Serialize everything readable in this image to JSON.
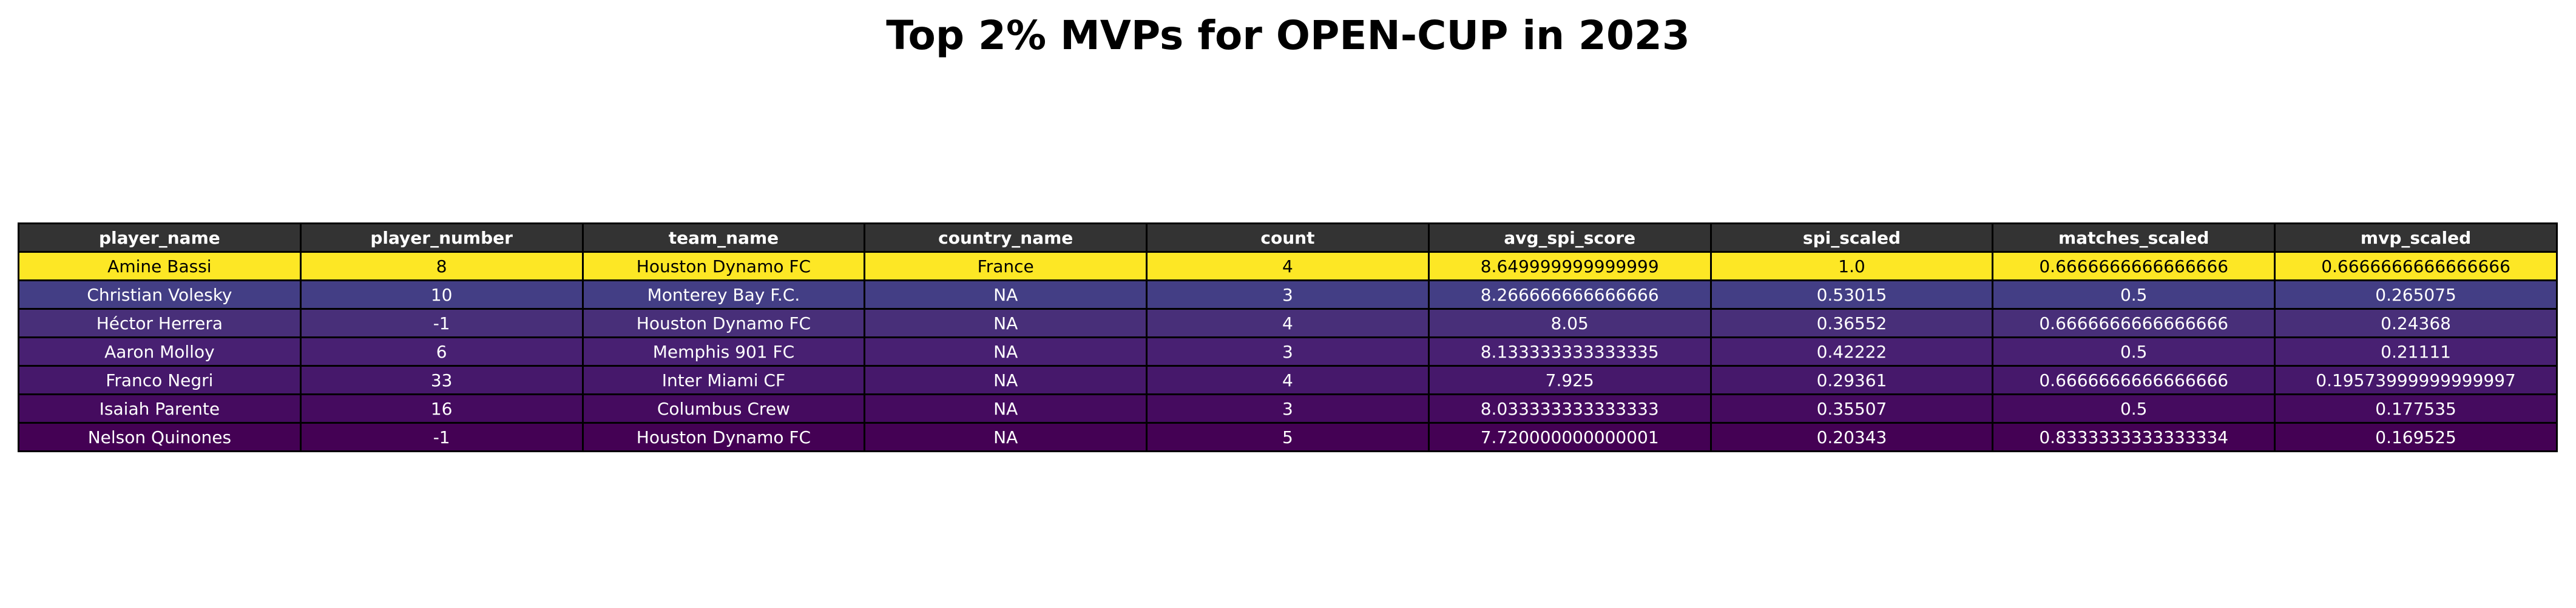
{
  "chart_data": {
    "type": "table",
    "title": "Top 2% MVPs for OPEN-CUP in 2023",
    "columns": [
      "player_name",
      "player_number",
      "team_name",
      "country_name",
      "count",
      "avg_spi_score",
      "spi_scaled",
      "matches_scaled",
      "mvp_scaled"
    ],
    "header_color": "#333333",
    "header_text_color": "#ffffff",
    "rows": [
      {
        "cells": [
          "Amine Bassi",
          "8",
          "Houston Dynamo FC",
          "France",
          "4",
          "8.649999999999999",
          "1.0",
          "0.6666666666666666",
          "0.6666666666666666"
        ],
        "color": "#fde725",
        "text_color": "#000000"
      },
      {
        "cells": [
          "Christian Volesky",
          "10",
          "Monterey Bay F.C.",
          "NA",
          "3",
          "8.266666666666666",
          "0.53015",
          "0.5",
          "0.265075"
        ],
        "color": "#433e85",
        "text_color": "#ffffff"
      },
      {
        "cells": [
          "Héctor Herrera",
          "-1",
          "Houston Dynamo FC",
          "NA",
          "4",
          "8.05",
          "0.36552",
          "0.6666666666666666",
          "0.24368"
        ],
        "color": "#482f79",
        "text_color": "#ffffff"
      },
      {
        "cells": [
          "Aaron Molloy",
          "6",
          "Memphis 901 FC",
          "NA",
          "3",
          "8.133333333333335",
          "0.42222",
          "0.5",
          "0.21111"
        ],
        "color": "#482072",
        "text_color": "#ffffff"
      },
      {
        "cells": [
          "Franco Negri",
          "33",
          "Inter Miami CF",
          "NA",
          "4",
          "7.925",
          "0.29361",
          "0.6666666666666666",
          "0.19573999999999997"
        ],
        "color": "#46186b",
        "text_color": "#ffffff"
      },
      {
        "cells": [
          "Isaiah Parente",
          "16",
          "Columbus Crew",
          "NA",
          "3",
          "8.033333333333333",
          "0.35507",
          "0.5",
          "0.177535"
        ],
        "color": "#450b5f",
        "text_color": "#ffffff"
      },
      {
        "cells": [
          "Nelson Quinones",
          "-1",
          "Houston Dynamo FC",
          "NA",
          "5",
          "7.720000000000001",
          "0.20343",
          "0.8333333333333334",
          "0.169525"
        ],
        "color": "#440154",
        "text_color": "#ffffff"
      }
    ]
  }
}
